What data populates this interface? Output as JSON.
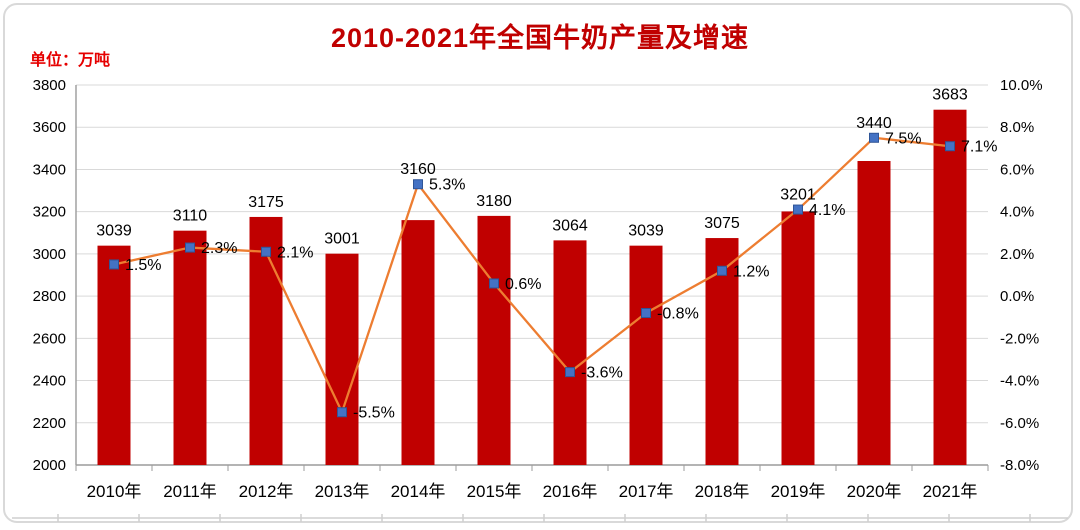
{
  "title": "2010-2021年全国牛奶产量及增速",
  "unit_label": "单位：万吨",
  "colors": {
    "bar": "#c00000",
    "line": "#ed7d31",
    "marker": "#4472c4",
    "marker_border": "#2f5597",
    "grid": "#d9d9d9",
    "axis": "#9b9b9b",
    "title": "#c00000",
    "unit": "#e60000",
    "text": "#000000"
  },
  "chart_data": {
    "type": "bar+line combo",
    "title": "2010-2021年全国牛奶产量及增速",
    "xlabel": "",
    "ylabel_left": "万吨",
    "ylabel_right": "%",
    "grid": true,
    "legend": "none",
    "categories": [
      "2010年",
      "2011年",
      "2012年",
      "2013年",
      "2014年",
      "2015年",
      "2016年",
      "2017年",
      "2018年",
      "2019年",
      "2020年",
      "2021年"
    ],
    "series": [
      {
        "name": "牛奶产量(万吨)",
        "type": "bar",
        "axis": "left",
        "color": "#c00000",
        "values": [
          3039,
          3110,
          3175,
          3001,
          3160,
          3180,
          3064,
          3039,
          3075,
          3201,
          3440,
          3683
        ]
      },
      {
        "name": "增速(%)",
        "type": "line",
        "axis": "right",
        "color": "#ed7d31",
        "marker": "square",
        "marker_color": "#4472c4",
        "values": [
          1.5,
          2.3,
          2.1,
          -5.5,
          5.3,
          0.6,
          -3.6,
          -0.8,
          1.2,
          4.1,
          7.5,
          7.1
        ]
      }
    ],
    "left_axis": {
      "min": 2000,
      "max": 3800,
      "step": 200
    },
    "right_axis": {
      "min": -8,
      "max": 10,
      "step": 2,
      "format": "percent_one_decimal"
    }
  }
}
